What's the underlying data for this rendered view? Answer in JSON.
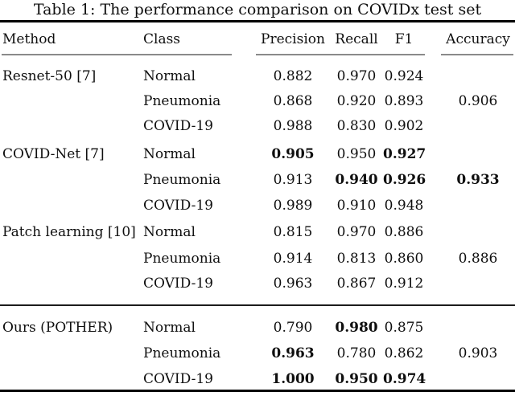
{
  "caption": "Table 1: The performance comparison on COVIDx test set",
  "table": {
    "headers": {
      "method": "Method",
      "class": "Class",
      "precision": "Precision",
      "recall": "Recall",
      "f1": "F1",
      "accuracy": "Accuracy"
    },
    "rows": [
      {
        "method": "Resnet-50 [7]",
        "class": "Normal",
        "precision": "0.882",
        "recall": "0.970",
        "f1": "0.924",
        "accuracy": "",
        "bold": []
      },
      {
        "method": "",
        "class": "Pneumonia",
        "precision": "0.868",
        "recall": "0.920",
        "f1": "0.893",
        "accuracy": "0.906",
        "bold": []
      },
      {
        "method": "",
        "class": "COVID-19",
        "precision": "0.988",
        "recall": "0.830",
        "f1": "0.902",
        "accuracy": "",
        "bold": []
      },
      {
        "method": "COVID-Net [7]",
        "class": "Normal",
        "precision": "0.905",
        "recall": "0.950",
        "f1": "0.927",
        "accuracy": "",
        "bold": [
          "precision",
          "f1"
        ]
      },
      {
        "method": "",
        "class": "Pneumonia",
        "precision": "0.913",
        "recall": "0.940",
        "f1": "0.926",
        "accuracy": "0.933",
        "bold": [
          "recall",
          "f1",
          "accuracy"
        ]
      },
      {
        "method": "",
        "class": "COVID-19",
        "precision": "0.989",
        "recall": "0.910",
        "f1": "0.948",
        "accuracy": "",
        "bold": []
      },
      {
        "method": "Patch learning [10]",
        "class": "Normal",
        "precision": "0.815",
        "recall": "0.970",
        "f1": "0.886",
        "accuracy": "",
        "bold": []
      },
      {
        "method": "",
        "class": "Pneumonia",
        "precision": "0.914",
        "recall": "0.813",
        "f1": "0.860",
        "accuracy": "0.886",
        "bold": []
      },
      {
        "method": "",
        "class": "COVID-19",
        "precision": "0.963",
        "recall": "0.867",
        "f1": "0.912",
        "accuracy": "",
        "bold": []
      },
      {
        "method": "Ours (POTHER)",
        "class": "Normal",
        "precision": "0.790",
        "recall": "0.980",
        "f1": "0.875",
        "accuracy": "",
        "bold": [
          "recall"
        ]
      },
      {
        "method": "",
        "class": "Pneumonia",
        "precision": "0.963",
        "recall": "0.780",
        "f1": "0.862",
        "accuracy": "0.903",
        "bold": [
          "precision"
        ]
      },
      {
        "method": "",
        "class": "COVID-19",
        "precision": "1.000",
        "recall": "0.950",
        "f1": "0.974",
        "accuracy": "",
        "bold": [
          "precision",
          "recall",
          "f1"
        ]
      }
    ]
  }
}
